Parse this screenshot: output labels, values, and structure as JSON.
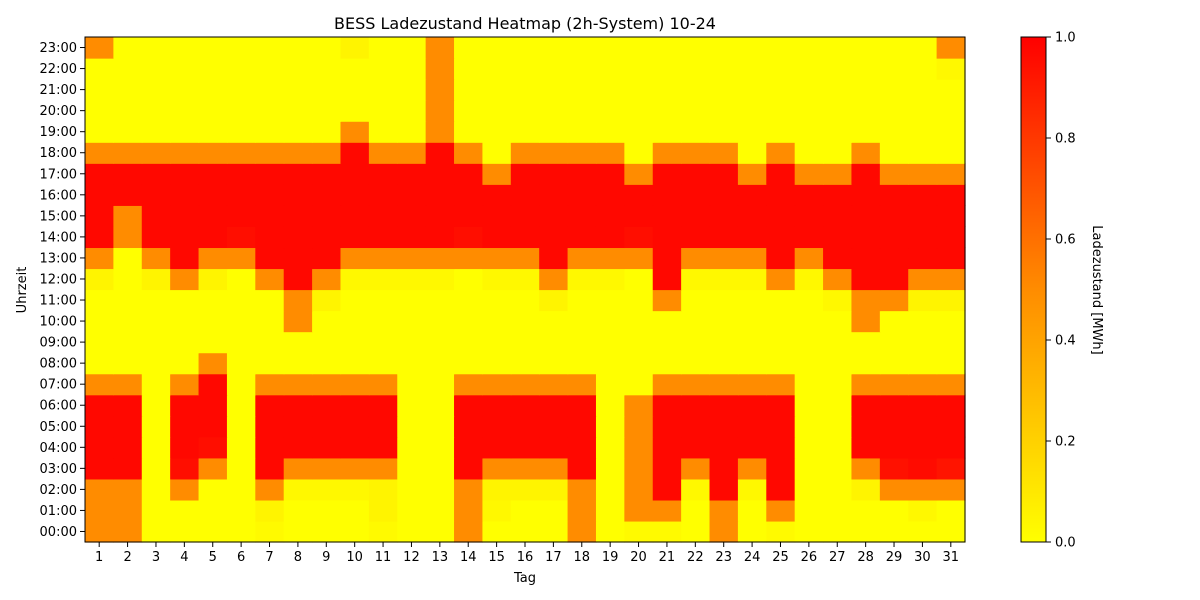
{
  "chart_data": {
    "type": "heatmap",
    "title": "BESS Ladezustand Heatmap (2h-System) 10-24",
    "xlabel": "Tag",
    "ylabel": "Uhrzeit",
    "x": [
      1,
      2,
      3,
      4,
      5,
      6,
      7,
      8,
      9,
      10,
      11,
      12,
      13,
      14,
      15,
      16,
      17,
      18,
      19,
      20,
      21,
      22,
      23,
      24,
      25,
      26,
      27,
      28,
      29,
      30,
      31
    ],
    "y": [
      "00:00",
      "01:00",
      "02:00",
      "03:00",
      "04:00",
      "05:00",
      "06:00",
      "07:00",
      "08:00",
      "09:00",
      "10:00",
      "11:00",
      "12:00",
      "13:00",
      "14:00",
      "15:00",
      "16:00",
      "17:00",
      "18:00",
      "19:00",
      "20:00",
      "21:00",
      "22:00",
      "23:00"
    ],
    "colorbar": {
      "label": "Ladezustand [MWh]",
      "range": [
        0,
        1
      ],
      "ticks": [
        0.0,
        0.2,
        0.4,
        0.6,
        0.8,
        1.0
      ],
      "tick_labels": [
        "0.0",
        "0.2",
        "0.4",
        "0.6",
        "0.8",
        "1.0"
      ],
      "colors": [
        "#ffff00",
        "#ff8c00",
        "#ff0000"
      ]
    },
    "values": [
      [
        0.5,
        0.5,
        0,
        0,
        0,
        0,
        0.02,
        0,
        0,
        0,
        0.02,
        0,
        0,
        0.5,
        0,
        0,
        0,
        0.5,
        0,
        0.02,
        0.02,
        0,
        0.5,
        0,
        0.02,
        0,
        0,
        0,
        0,
        0,
        0
      ],
      [
        0.5,
        0.5,
        0,
        0,
        0,
        0,
        0.05,
        0,
        0,
        0,
        0.05,
        0,
        0,
        0.5,
        0.03,
        0,
        0,
        0.5,
        0,
        0.5,
        0.5,
        0,
        0.5,
        0,
        0.5,
        0,
        0,
        0,
        0,
        0.03,
        0
      ],
      [
        0.5,
        0.5,
        0,
        0.5,
        0,
        0,
        0.5,
        0.03,
        0.03,
        0.03,
        0.05,
        0,
        0,
        0.5,
        0.05,
        0.05,
        0.05,
        0.5,
        0,
        0.5,
        0.97,
        0.03,
        0.97,
        0.03,
        0.97,
        0,
        0,
        0.05,
        0.5,
        0.5,
        0.5
      ],
      [
        0.97,
        0.97,
        0,
        0.95,
        0.5,
        0,
        0.97,
        0.5,
        0.5,
        0.5,
        0.5,
        0,
        0,
        0.97,
        0.5,
        0.5,
        0.5,
        0.97,
        0,
        0.5,
        0.97,
        0.5,
        0.97,
        0.5,
        0.97,
        0,
        0,
        0.5,
        0.94,
        0.96,
        0.93
      ],
      [
        0.97,
        0.97,
        0,
        0.97,
        0.95,
        0,
        0.97,
        0.97,
        0.97,
        0.97,
        0.97,
        0,
        0,
        0.97,
        0.97,
        0.97,
        0.97,
        0.97,
        0,
        0.5,
        0.97,
        0.97,
        0.97,
        0.97,
        0.97,
        0,
        0,
        0.97,
        0.97,
        0.97,
        0.97
      ],
      [
        0.97,
        0.97,
        0,
        0.97,
        0.97,
        0,
        0.97,
        0.97,
        0.97,
        0.97,
        0.97,
        0,
        0,
        0.97,
        0.97,
        0.97,
        0.97,
        0.97,
        0,
        0.5,
        0.97,
        0.97,
        0.97,
        0.97,
        0.97,
        0,
        0,
        0.97,
        0.97,
        0.97,
        0.97
      ],
      [
        0.97,
        0.97,
        0,
        0.97,
        0.97,
        0,
        0.97,
        0.97,
        0.97,
        0.97,
        0.97,
        0,
        0,
        0.97,
        0.97,
        0.97,
        0.97,
        0.97,
        0,
        0.5,
        0.97,
        0.97,
        0.97,
        0.97,
        0.97,
        0,
        0,
        0.97,
        0.97,
        0.97,
        0.97
      ],
      [
        0.5,
        0.5,
        0,
        0.5,
        0.97,
        0,
        0.5,
        0.5,
        0.5,
        0.5,
        0.5,
        0,
        0,
        0.5,
        0.5,
        0.5,
        0.5,
        0.5,
        0,
        0,
        0.5,
        0.5,
        0.5,
        0.5,
        0.5,
        0,
        0,
        0.5,
        0.5,
        0.5,
        0.5
      ],
      [
        0,
        0,
        0,
        0,
        0.5,
        0,
        0,
        0,
        0,
        0,
        0,
        0,
        0,
        0,
        0,
        0,
        0,
        0,
        0,
        0,
        0,
        0,
        0,
        0,
        0,
        0,
        0,
        0,
        0,
        0,
        0
      ],
      [
        0,
        0,
        0,
        0,
        0,
        0,
        0,
        0,
        0,
        0,
        0,
        0,
        0,
        0,
        0,
        0,
        0,
        0,
        0,
        0,
        0,
        0,
        0,
        0,
        0,
        0,
        0,
        0,
        0,
        0,
        0
      ],
      [
        0,
        0,
        0,
        0,
        0,
        0,
        0,
        0.5,
        0,
        0,
        0,
        0,
        0,
        0,
        0,
        0,
        0,
        0,
        0,
        0,
        0,
        0,
        0,
        0,
        0,
        0,
        0,
        0.5,
        0,
        0,
        0
      ],
      [
        0,
        0,
        0,
        0,
        0,
        0,
        0,
        0.5,
        0.05,
        0,
        0,
        0,
        0,
        0,
        0,
        0,
        0.05,
        0,
        0,
        0,
        0.5,
        0,
        0,
        0,
        0,
        0,
        0.03,
        0.5,
        0.5,
        0.05,
        0.05
      ],
      [
        0.05,
        0,
        0.05,
        0.5,
        0.05,
        0,
        0.5,
        0.97,
        0.5,
        0.03,
        0.03,
        0.03,
        0.03,
        0,
        0.03,
        0.03,
        0.5,
        0.03,
        0.03,
        0,
        0.97,
        0.03,
        0.03,
        0.03,
        0.5,
        0.03,
        0.5,
        0.97,
        0.97,
        0.5,
        0.5
      ],
      [
        0.5,
        0,
        0.5,
        0.97,
        0.5,
        0.5,
        0.97,
        0.97,
        0.97,
        0.5,
        0.5,
        0.5,
        0.5,
        0.5,
        0.5,
        0.5,
        0.97,
        0.5,
        0.5,
        0.5,
        0.97,
        0.5,
        0.5,
        0.5,
        0.97,
        0.5,
        0.97,
        0.97,
        0.97,
        0.97,
        0.97
      ],
      [
        0.97,
        0.5,
        0.97,
        0.97,
        0.97,
        0.95,
        0.97,
        0.97,
        0.97,
        0.97,
        0.97,
        0.97,
        0.97,
        0.95,
        0.97,
        0.97,
        0.97,
        0.97,
        0.97,
        0.95,
        0.97,
        0.97,
        0.97,
        0.97,
        0.97,
        0.97,
        0.97,
        0.97,
        0.97,
        0.97,
        0.97
      ],
      [
        0.97,
        0.5,
        0.97,
        0.97,
        0.97,
        0.97,
        0.97,
        0.97,
        0.97,
        0.97,
        0.97,
        0.97,
        0.97,
        0.97,
        0.97,
        0.97,
        0.97,
        0.97,
        0.97,
        0.97,
        0.97,
        0.97,
        0.97,
        0.97,
        0.97,
        0.97,
        0.97,
        0.97,
        0.97,
        0.97,
        0.97
      ],
      [
        0.97,
        0.97,
        0.97,
        0.97,
        0.97,
        0.97,
        0.97,
        0.97,
        0.97,
        0.97,
        0.97,
        0.97,
        0.97,
        0.97,
        0.97,
        0.97,
        0.97,
        0.97,
        0.97,
        0.97,
        0.97,
        0.97,
        0.97,
        0.97,
        0.97,
        0.97,
        0.97,
        0.97,
        0.97,
        0.97,
        0.97
      ],
      [
        0.97,
        0.97,
        0.97,
        0.97,
        0.97,
        0.97,
        0.97,
        0.97,
        0.97,
        0.97,
        0.97,
        0.97,
        0.97,
        0.97,
        0.5,
        0.97,
        0.97,
        0.97,
        0.97,
        0.5,
        0.97,
        0.97,
        0.97,
        0.5,
        0.97,
        0.5,
        0.5,
        0.97,
        0.5,
        0.5,
        0.5
      ],
      [
        0.5,
        0.5,
        0.5,
        0.5,
        0.5,
        0.5,
        0.5,
        0.5,
        0.5,
        0.97,
        0.5,
        0.5,
        0.97,
        0.5,
        0,
        0.5,
        0.5,
        0.5,
        0.5,
        0,
        0.5,
        0.5,
        0.5,
        0,
        0.5,
        0,
        0,
        0.5,
        0,
        0,
        0
      ],
      [
        0,
        0,
        0,
        0,
        0,
        0,
        0,
        0,
        0,
        0.5,
        0,
        0,
        0.5,
        0,
        0,
        0,
        0,
        0,
        0,
        0,
        0,
        0,
        0,
        0,
        0,
        0,
        0,
        0,
        0,
        0,
        0
      ],
      [
        0,
        0,
        0,
        0,
        0,
        0,
        0,
        0,
        0,
        0,
        0,
        0,
        0.5,
        0,
        0,
        0,
        0,
        0,
        0,
        0,
        0,
        0,
        0,
        0,
        0,
        0,
        0,
        0,
        0,
        0,
        0
      ],
      [
        0,
        0,
        0,
        0,
        0,
        0,
        0,
        0,
        0,
        0,
        0,
        0,
        0.5,
        0,
        0,
        0,
        0,
        0,
        0,
        0,
        0,
        0,
        0,
        0,
        0,
        0,
        0,
        0,
        0,
        0,
        0
      ],
      [
        0,
        0,
        0,
        0,
        0,
        0,
        0,
        0,
        0,
        0,
        0,
        0,
        0.5,
        0,
        0,
        0,
        0,
        0,
        0,
        0,
        0,
        0,
        0,
        0,
        0,
        0,
        0,
        0,
        0,
        0,
        0.03
      ],
      [
        0.5,
        0,
        0,
        0,
        0,
        0,
        0,
        0,
        0,
        0.05,
        0,
        0,
        0.5,
        0,
        0,
        0,
        0,
        0,
        0,
        0,
        0,
        0,
        0,
        0,
        0,
        0,
        0,
        0,
        0,
        0,
        0.5
      ]
    ]
  }
}
